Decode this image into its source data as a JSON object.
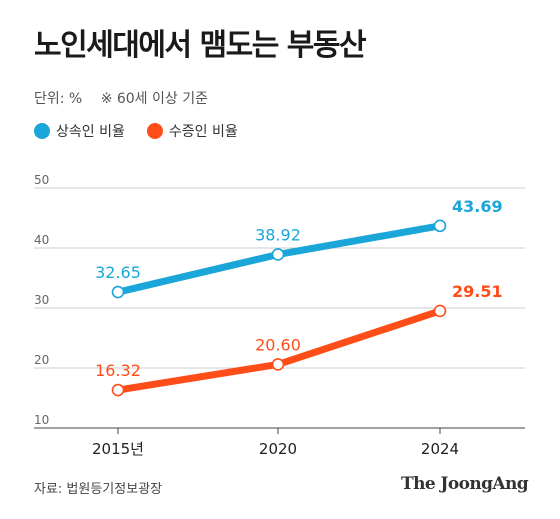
{
  "header": {
    "title": "노인세대에서 맴도는 부동산",
    "unit": "단위: %",
    "note": "※ 60세 이상 기준"
  },
  "footer": {
    "source": "자료: 법원등기정보광장",
    "brand": "The JoongAng"
  },
  "chart_data": {
    "type": "line",
    "categories": [
      "2015년",
      "2020",
      "2024"
    ],
    "series": [
      {
        "name": "상속인 비율",
        "values": [
          32.65,
          38.92,
          43.69
        ],
        "labels": [
          "32.65",
          "38.92",
          "43.69"
        ],
        "color": "#1aa6d8"
      },
      {
        "name": "수증인 비율",
        "values": [
          16.32,
          20.6,
          29.51
        ],
        "labels": [
          "16.32",
          "20.60",
          "29.51"
        ],
        "color": "#ff4d1a"
      }
    ],
    "yticks": [
      10,
      20,
      30,
      40,
      50
    ],
    "ylim": [
      10,
      50
    ],
    "grid": true,
    "legend": "top-left"
  }
}
